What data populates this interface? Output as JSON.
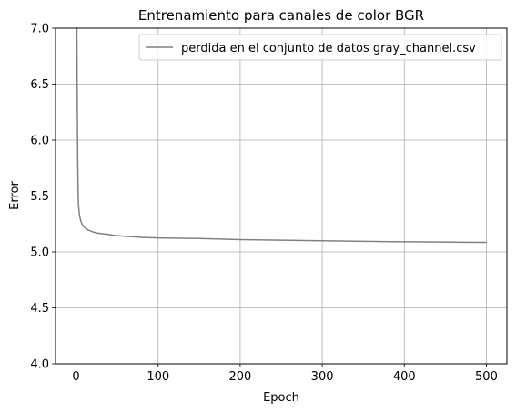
{
  "chart_data": {
    "type": "line",
    "title": "Entrenamiento para canales de color BGR",
    "xlabel": "Epoch",
    "ylabel": "Error",
    "xlim": [
      -25,
      525
    ],
    "ylim": [
      4.0,
      7.0
    ],
    "x_ticks": [
      0,
      100,
      200,
      300,
      400,
      500
    ],
    "x_tick_labels": [
      "0",
      "100",
      "200",
      "300",
      "400",
      "500"
    ],
    "y_ticks": [
      4.0,
      4.5,
      5.0,
      5.5,
      6.0,
      6.5,
      7.0
    ],
    "y_tick_labels": [
      "4.0",
      "4.5",
      "5.0",
      "5.5",
      "6.0",
      "6.5",
      "7.0"
    ],
    "grid": true,
    "legend_position": "top-right",
    "series": [
      {
        "name": "perdida en el conjunto de datos gray_channel.csv",
        "color": "#808080",
        "x": [
          0,
          1,
          1.5,
          2,
          2.5,
          3,
          4,
          5,
          6,
          8,
          10,
          12,
          15,
          20,
          25,
          30,
          40,
          50,
          60,
          80,
          100,
          150,
          200,
          250,
          300,
          350,
          400,
          450,
          500
        ],
        "y": [
          7.5,
          7.0,
          6.3,
          5.85,
          5.55,
          5.42,
          5.34,
          5.3,
          5.27,
          5.24,
          5.22,
          5.21,
          5.195,
          5.18,
          5.17,
          5.165,
          5.155,
          5.145,
          5.14,
          5.13,
          5.125,
          5.12,
          5.11,
          5.105,
          5.1,
          5.095,
          5.09,
          5.088,
          5.085
        ]
      }
    ]
  }
}
